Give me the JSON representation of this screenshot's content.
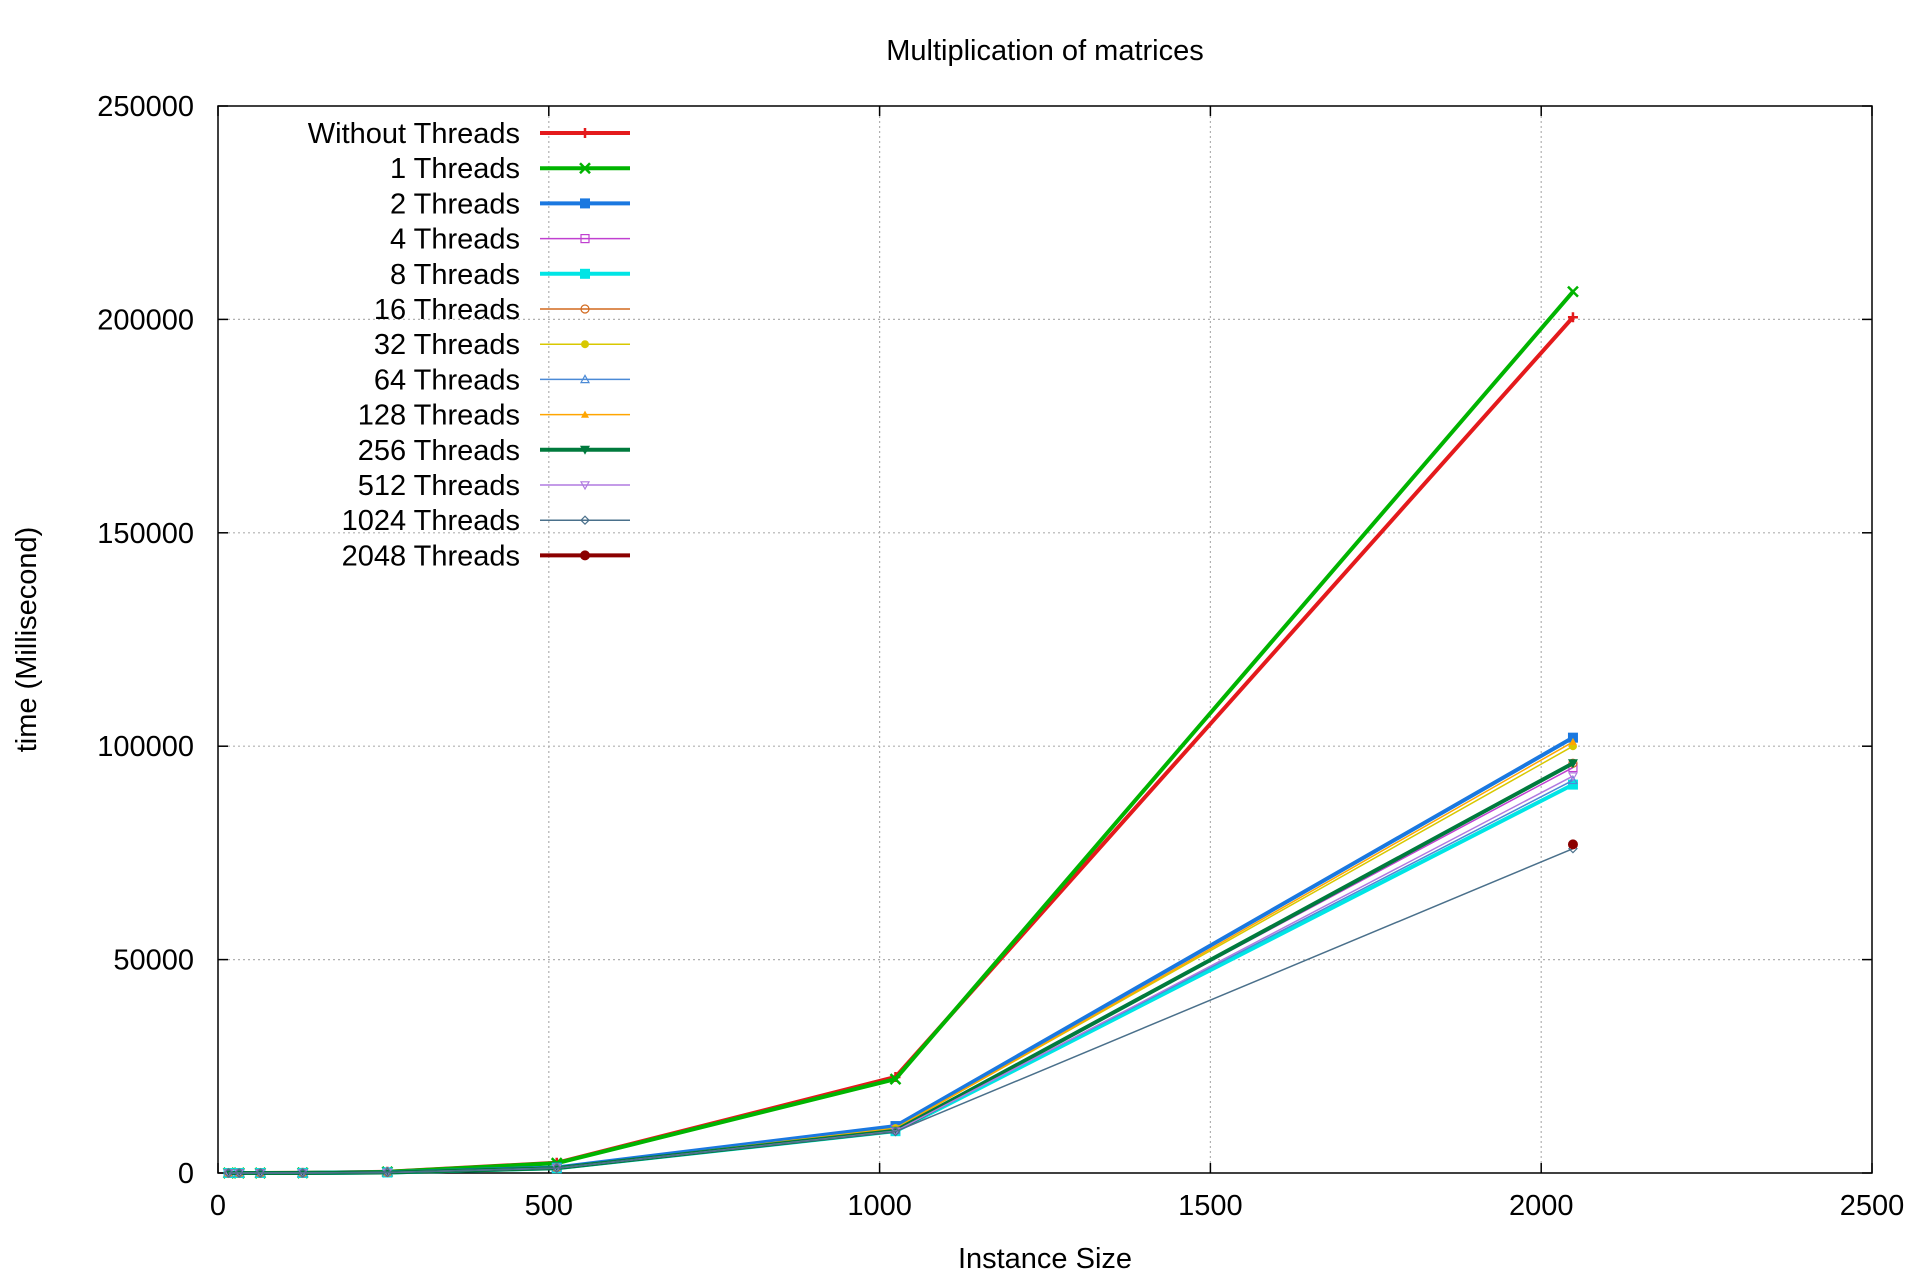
{
  "chart_data": {
    "type": "line",
    "title": "Multiplication of matrices",
    "xlabel": "Instance Size",
    "ylabel": "time (Millisecond)",
    "xlim": [
      0,
      2500
    ],
    "ylim": [
      0,
      250000
    ],
    "xticks": [
      0,
      500,
      1000,
      1500,
      2000,
      2500
    ],
    "yticks": [
      0,
      50000,
      100000,
      150000,
      200000,
      250000
    ],
    "grid": true,
    "legend_position": "top-left",
    "x": [
      16,
      32,
      64,
      128,
      256,
      512,
      1024,
      2048
    ],
    "series": [
      {
        "name": "Without Threads",
        "color": "#e41a1c",
        "marker": "plus",
        "width": 4,
        "values": [
          0,
          0,
          0,
          20,
          280,
          2400,
          22500,
          200500
        ]
      },
      {
        "name": "1 Threads",
        "color": "#00b400",
        "marker": "cross",
        "width": 4,
        "values": [
          0,
          0,
          0,
          20,
          260,
          2300,
          22000,
          206500
        ]
      },
      {
        "name": "2 Threads",
        "color": "#1a78e0",
        "marker": "filled-square",
        "width": 4,
        "values": [
          0,
          0,
          0,
          10,
          150,
          1300,
          11000,
          102000
        ]
      },
      {
        "name": "4 Threads",
        "color": "#c040d0",
        "marker": "open-square",
        "width": 1.5,
        "values": [
          0,
          0,
          0,
          10,
          130,
          1200,
          10200,
          95000
        ]
      },
      {
        "name": "8 Threads",
        "color": "#00e5e5",
        "marker": "filled-square",
        "width": 4,
        "values": [
          0,
          0,
          0,
          10,
          120,
          1100,
          9800,
          91000
        ]
      },
      {
        "name": "16 Threads",
        "color": "#d2691e",
        "marker": "open-circle",
        "width": 1.5,
        "values": [
          0,
          0,
          0,
          10,
          130,
          1200,
          10000,
          96000
        ]
      },
      {
        "name": "32 Threads",
        "color": "#d8c800",
        "marker": "filled-circle",
        "width": 1.5,
        "values": [
          0,
          0,
          0,
          10,
          140,
          1200,
          10500,
          100000
        ]
      },
      {
        "name": "64 Threads",
        "color": "#4b8ad6",
        "marker": "open-triangle",
        "width": 1.5,
        "values": [
          0,
          0,
          0,
          10,
          130,
          1200,
          10000,
          92000
        ]
      },
      {
        "name": "128 Threads",
        "color": "#ffa500",
        "marker": "filled-triangle",
        "width": 1.5,
        "values": [
          0,
          0,
          0,
          10,
          140,
          1200,
          10400,
          101000
        ]
      },
      {
        "name": "256 Threads",
        "color": "#007a3d",
        "marker": "filled-triangle-down",
        "width": 4,
        "values": [
          0,
          0,
          0,
          10,
          130,
          1150,
          9900,
          96000
        ]
      },
      {
        "name": "512 Threads",
        "color": "#b07ae0",
        "marker": "open-triangle-down",
        "width": 1.5,
        "values": [
          0,
          0,
          0,
          10,
          130,
          1150,
          9800,
          93000
        ]
      },
      {
        "name": "1024 Threads",
        "color": "#4a708b",
        "marker": "open-diamond",
        "width": 1.5,
        "values": [
          0,
          0,
          0,
          10,
          130,
          1150,
          9700,
          76000
        ]
      },
      {
        "name": "2048 Threads",
        "color": "#8b0000",
        "marker": "filled-circle",
        "width": 4,
        "values": [
          null,
          null,
          null,
          null,
          null,
          null,
          null,
          77000
        ]
      }
    ]
  }
}
